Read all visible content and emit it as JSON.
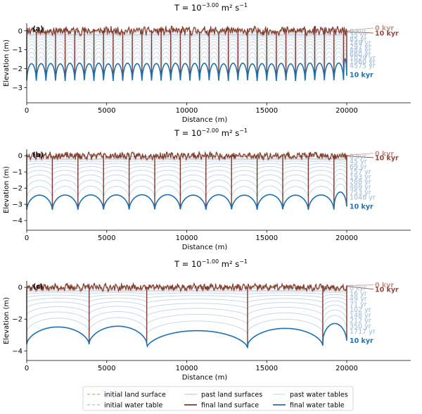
{
  "colors": {
    "land_final": "#7a3b2e",
    "land_initial": "#c9906b",
    "land_past": "#e0b7a8",
    "water_final": "#1f6fb0",
    "water_initial": "#8fb1d8",
    "water_past": "#c3d3ea",
    "label_land_time": "#c8928a",
    "label_land_final": "#8c4a40",
    "label_water_time": "#9cb8dc",
    "label_water_final": "#1f6fb0"
  },
  "chart_data": [
    {
      "type": "line",
      "panel": "(a)",
      "title_prefix": "T = 10",
      "title_exponent": "−3.00",
      "title_units": " m² s",
      "title_units_exponent": "−1",
      "xlabel": "Distance (m)",
      "ylabel": "Elevation (m)",
      "xlim": [
        0,
        24000
      ],
      "ylim": [
        -3.8,
        0.4
      ],
      "xticks": [
        "0",
        "5000",
        "10000",
        "15000",
        "20000"
      ],
      "yticks": [
        "0",
        "−1",
        "−2",
        "−3"
      ],
      "ytick_values": [
        0,
        -1,
        -2,
        -3
      ],
      "drain_spacing_m": 600,
      "final_depth_m": 2.4,
      "depth_variation_m": 0.4,
      "land_end_labels": [
        "0 kyr",
        "10 kyr"
      ],
      "water_time_labels": [
        "0 kyr",
        "35 yr",
        "85 yr",
        "149 yr",
        "297 yr",
        "484 yr",
        "660 yr",
        "1029 yr",
        "1960 yr",
        "4575 yr"
      ],
      "water_final_label": "10 kyr"
    },
    {
      "type": "line",
      "panel": "(b)",
      "title_prefix": "T = 10",
      "title_exponent": "−2.00",
      "title_units": " m² s",
      "title_units_exponent": "−1",
      "xlabel": "Distance (m)",
      "ylabel": "Elevation (m)",
      "xlim": [
        0,
        24000
      ],
      "ylim": [
        -4.6,
        0.4
      ],
      "xticks": [
        "0",
        "5000",
        "10000",
        "15000",
        "20000"
      ],
      "yticks": [
        "0",
        "−1",
        "−2",
        "−3",
        "−4"
      ],
      "ytick_values": [
        0,
        -1,
        -2,
        -3,
        -4
      ],
      "drain_spacing_m": 1600,
      "final_depth_m": 3.1,
      "depth_variation_m": 0.4,
      "land_end_labels": [
        "0 kyr",
        "10 kyr"
      ],
      "water_time_labels": [
        "0 kyr",
        "45 yr",
        "69 yr",
        "157 yr",
        "193 yr",
        "288 yr",
        "469 yr",
        "753 yr",
        "1048 yr"
      ],
      "water_final_label": "10 kyr"
    },
    {
      "type": "line",
      "panel": "(c)",
      "title_prefix": "T = 10",
      "title_exponent": "−1.00",
      "title_units": " m² s",
      "title_units_exponent": "−1",
      "xlabel": "Distance (m)",
      "ylabel": "Elevation (m)",
      "xlim": [
        0,
        24000
      ],
      "ylim": [
        -4.6,
        0.4
      ],
      "xticks": [
        "0",
        "5000",
        "10000",
        "15000",
        "20000"
      ],
      "yticks": [
        "0",
        "−2",
        "−4"
      ],
      "ytick_values": [
        0,
        -2,
        -4
      ],
      "drain_x_m": [
        0,
        3900,
        7500,
        13800,
        18500,
        20000
      ],
      "final_depth_m": 3.5,
      "depth_variation_m": 0.6,
      "land_end_labels": [
        "0 kyr",
        "10 kyr"
      ],
      "water_time_labels": [
        "0 kyr",
        "16 yr",
        "49 yr",
        "71 yr",
        "102 yr",
        "148 yr",
        "212 yr",
        "350 yr",
        "1717 yr"
      ],
      "water_final_label": "10 kyr"
    }
  ],
  "legend": {
    "items": [
      {
        "label": "initial land surface",
        "style": "land_initial_dashed"
      },
      {
        "label": "past land surfaces",
        "style": "land_past"
      },
      {
        "label": "past water tables",
        "style": "water_past"
      },
      {
        "label": "initial water table",
        "style": "water_initial_dashed"
      },
      {
        "label": "final land surface",
        "style": "land_final"
      },
      {
        "label": "final water table",
        "style": "water_final"
      }
    ]
  }
}
